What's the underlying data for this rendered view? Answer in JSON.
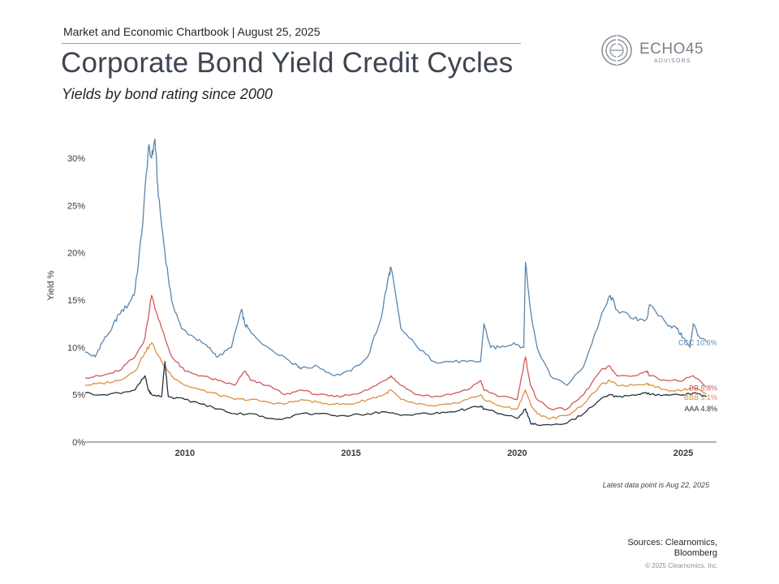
{
  "header": {
    "chartbook": "Market and Economic Chartbook | August 25, 2025",
    "title": "Corporate Bond Yield Credit Cycles",
    "subtitle": "Yields by bond rating since 2000"
  },
  "logo": {
    "name": "ECHO45",
    "sub": "ADVISORS"
  },
  "footer": {
    "latest": "Latest data point is Aug 22, 2025",
    "sources_line1": "Sources: Clearnomics,",
    "sources_line2": "Bloomberg",
    "copyright": "© 2025 Clearnomics, Inc."
  },
  "colors": {
    "CCC": "#5b86ad",
    "BB": "#d0595c",
    "BBB": "#de8f42",
    "AAA": "#27323d",
    "axis": "#666666",
    "text": "#333b44"
  },
  "chart_data": {
    "type": "line",
    "title": "Corporate Bond Yield Credit Cycles",
    "subtitle": "Yields by bond rating since 2000",
    "ylabel": "Yield %",
    "xlabel": "",
    "xlim": [
      2007.0,
      2026.0
    ],
    "ylim": [
      0,
      33
    ],
    "x_ticks": [
      2010,
      2015,
      2020,
      2025
    ],
    "y_ticks": [
      "0%",
      "5%",
      "10%",
      "15%",
      "20%",
      "25%",
      "30%"
    ],
    "y_tick_values": [
      0,
      5,
      10,
      15,
      20,
      25,
      30
    ],
    "grid": false,
    "legend": "end-labels",
    "end_labels": [
      {
        "series": "CCC",
        "text": "CCC 10.6%"
      },
      {
        "series": "BB",
        "text": "BB 5.8%"
      },
      {
        "series": "BBB",
        "text": "BBB 5.1%"
      },
      {
        "series": "AAA",
        "text": "AAA 4.8%"
      }
    ],
    "series": [
      {
        "name": "CCC",
        "x": [
          2007.0,
          2007.3,
          2007.5,
          2007.8,
          2008.0,
          2008.3,
          2008.5,
          2008.7,
          2008.9,
          2009.0,
          2009.1,
          2009.2,
          2009.4,
          2009.6,
          2009.9,
          2010.3,
          2010.7,
          2011.0,
          2011.4,
          2011.7,
          2011.8,
          2012.0,
          2012.5,
          2013.0,
          2013.4,
          2013.5,
          2014.0,
          2014.5,
          2015.0,
          2015.5,
          2015.9,
          2016.1,
          2016.2,
          2016.5,
          2017.0,
          2017.5,
          2018.0,
          2018.5,
          2018.9,
          2019.0,
          2019.2,
          2019.5,
          2019.9,
          2020.2,
          2020.25,
          2020.4,
          2020.6,
          2021.0,
          2021.5,
          2022.0,
          2022.5,
          2022.8,
          2023.0,
          2023.5,
          2023.9,
          2024.0,
          2024.5,
          2024.8,
          2025.0,
          2025.2,
          2025.3,
          2025.5,
          2025.7
        ],
        "values": [
          9.5,
          9.0,
          10.5,
          12.0,
          13.5,
          14.5,
          16.0,
          22.0,
          31.0,
          30.0,
          32.0,
          26.0,
          20.0,
          15.0,
          12.0,
          11.0,
          10.0,
          9.0,
          10.0,
          14.0,
          12.5,
          11.5,
          10.0,
          9.0,
          8.0,
          7.8,
          8.0,
          7.0,
          7.5,
          9.0,
          13.0,
          17.0,
          18.5,
          12.0,
          10.0,
          8.5,
          8.5,
          8.5,
          8.5,
          12.5,
          10.0,
          10.0,
          10.5,
          10.0,
          19.0,
          14.0,
          10.0,
          7.0,
          6.0,
          8.0,
          13.0,
          15.5,
          14.0,
          13.0,
          13.0,
          14.5,
          12.5,
          12.0,
          11.0,
          10.0,
          12.5,
          11.0,
          10.6
        ]
      },
      {
        "name": "BB",
        "x": [
          2007.0,
          2007.5,
          2008.0,
          2008.5,
          2008.8,
          2009.0,
          2009.3,
          2009.6,
          2010.0,
          2010.5,
          2011.0,
          2011.5,
          2011.8,
          2012.0,
          2012.5,
          2013.0,
          2013.5,
          2014.0,
          2014.5,
          2015.0,
          2015.5,
          2016.0,
          2016.2,
          2016.5,
          2017.0,
          2017.5,
          2018.0,
          2018.5,
          2018.9,
          2019.0,
          2019.5,
          2020.0,
          2020.25,
          2020.4,
          2020.6,
          2021.0,
          2021.5,
          2022.0,
          2022.5,
          2022.8,
          2023.0,
          2023.5,
          2023.9,
          2024.0,
          2024.5,
          2025.0,
          2025.3,
          2025.7
        ],
        "values": [
          6.8,
          7.0,
          7.5,
          9.0,
          11.0,
          15.5,
          12.0,
          9.0,
          7.5,
          7.0,
          6.5,
          6.0,
          7.5,
          6.5,
          6.0,
          5.0,
          5.5,
          5.0,
          4.8,
          5.0,
          5.5,
          6.5,
          7.0,
          6.0,
          5.0,
          4.8,
          5.0,
          5.5,
          6.5,
          5.5,
          4.8,
          4.5,
          9.0,
          6.0,
          4.5,
          3.5,
          3.5,
          5.0,
          7.5,
          8.0,
          7.0,
          7.0,
          7.5,
          7.0,
          6.5,
          6.5,
          7.0,
          5.8
        ]
      },
      {
        "name": "BBB",
        "x": [
          2007.0,
          2007.5,
          2008.0,
          2008.5,
          2008.8,
          2009.0,
          2009.3,
          2009.6,
          2010.0,
          2010.5,
          2011.0,
          2011.5,
          2012.0,
          2012.5,
          2013.0,
          2013.5,
          2014.0,
          2014.5,
          2015.0,
          2015.5,
          2016.0,
          2016.2,
          2016.5,
          2017.0,
          2017.5,
          2018.0,
          2018.5,
          2018.9,
          2019.0,
          2019.5,
          2020.0,
          2020.25,
          2020.4,
          2020.6,
          2021.0,
          2021.5,
          2022.0,
          2022.5,
          2022.8,
          2023.0,
          2023.5,
          2023.9,
          2024.0,
          2024.5,
          2025.0,
          2025.3,
          2025.7
        ],
        "values": [
          6.0,
          6.2,
          6.5,
          7.5,
          9.5,
          10.5,
          8.5,
          7.0,
          6.0,
          5.5,
          5.0,
          4.5,
          4.5,
          4.2,
          4.0,
          4.5,
          4.2,
          4.0,
          4.0,
          4.5,
          5.0,
          5.5,
          4.5,
          4.0,
          3.8,
          4.0,
          4.5,
          5.0,
          4.5,
          3.8,
          3.5,
          5.5,
          4.0,
          3.0,
          2.5,
          2.8,
          4.0,
          6.0,
          6.5,
          6.0,
          6.0,
          6.2,
          6.0,
          5.5,
          5.5,
          5.8,
          5.1
        ]
      },
      {
        "name": "AAA",
        "x": [
          2007.0,
          2007.5,
          2008.0,
          2008.5,
          2008.8,
          2008.9,
          2009.0,
          2009.3,
          2009.4,
          2009.5,
          2010.0,
          2010.5,
          2011.0,
          2011.5,
          2012.0,
          2012.5,
          2013.0,
          2013.5,
          2014.0,
          2014.5,
          2015.0,
          2015.5,
          2016.0,
          2016.5,
          2017.0,
          2017.5,
          2018.0,
          2018.5,
          2018.9,
          2019.0,
          2019.5,
          2020.0,
          2020.25,
          2020.4,
          2020.6,
          2021.0,
          2021.5,
          2022.0,
          2022.5,
          2022.8,
          2023.0,
          2023.5,
          2023.9,
          2024.0,
          2024.5,
          2025.0,
          2025.3,
          2025.7
        ],
        "values": [
          5.2,
          5.0,
          5.2,
          5.5,
          7.0,
          5.5,
          5.0,
          4.8,
          8.5,
          4.8,
          4.5,
          4.0,
          3.5,
          3.0,
          3.0,
          2.5,
          2.5,
          3.0,
          3.0,
          2.8,
          2.8,
          3.0,
          3.2,
          2.8,
          3.0,
          3.0,
          3.2,
          3.5,
          3.8,
          3.5,
          3.0,
          2.5,
          3.5,
          2.0,
          1.8,
          1.8,
          2.0,
          3.0,
          4.5,
          5.0,
          4.8,
          5.0,
          5.2,
          5.0,
          5.0,
          5.0,
          5.2,
          4.8
        ]
      }
    ]
  }
}
